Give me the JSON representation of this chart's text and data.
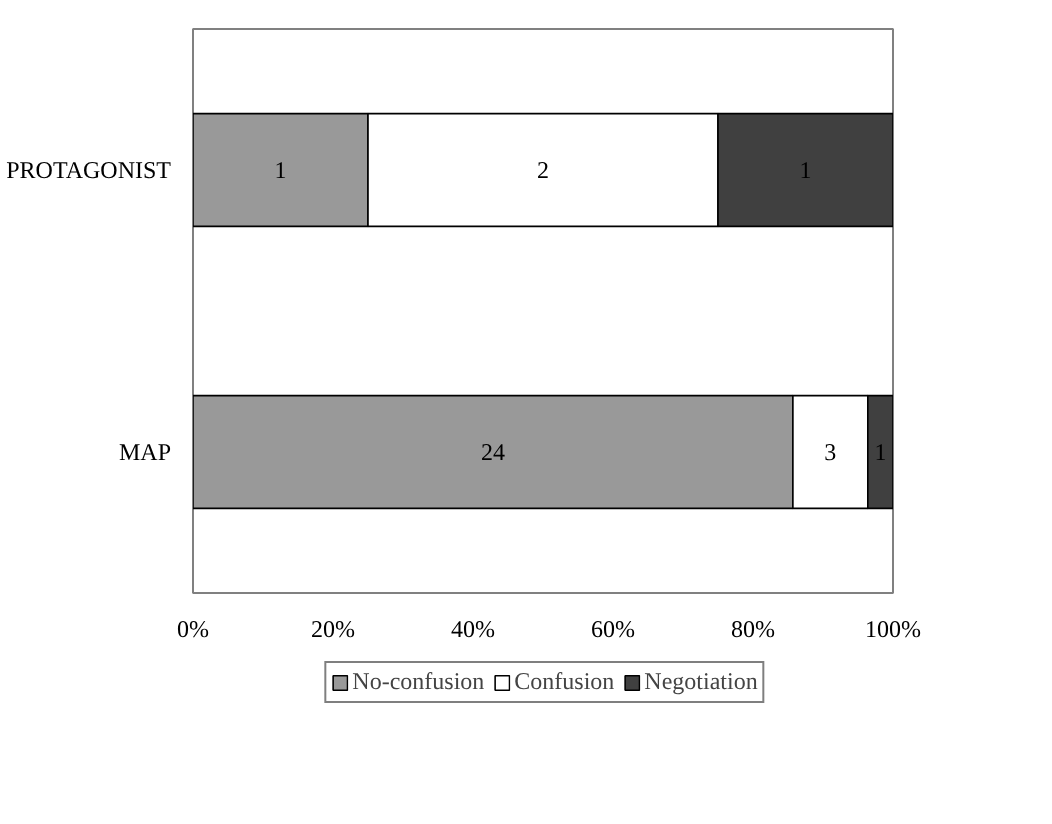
{
  "chart_data": {
    "type": "bar",
    "orientation": "horizontal",
    "stacked": true,
    "categories": [
      "PROTAGONIST",
      "MAP"
    ],
    "series": [
      {
        "name": "No-confusion",
        "color": "#999999",
        "values": [
          25,
          85.7
        ]
      },
      {
        "name": "Confusion",
        "color": "#ffffff",
        "values": [
          50,
          10.7
        ]
      },
      {
        "name": "Negotiation",
        "color": "#404040",
        "values": [
          25,
          3.6
        ]
      }
    ],
    "annotations": [
      "1",
      "2",
      "1",
      "24",
      "3",
      "1"
    ],
    "xlim": [
      0,
      100
    ],
    "xticks": [
      {
        "value": 0,
        "label": "0%"
      },
      {
        "value": 20,
        "label": "20%"
      },
      {
        "value": 40,
        "label": "40%"
      },
      {
        "value": 60,
        "label": "60%"
      },
      {
        "value": 80,
        "label": "80%"
      },
      {
        "value": 100,
        "label": "100%"
      }
    ],
    "grid": false,
    "legend": "bottom"
  }
}
